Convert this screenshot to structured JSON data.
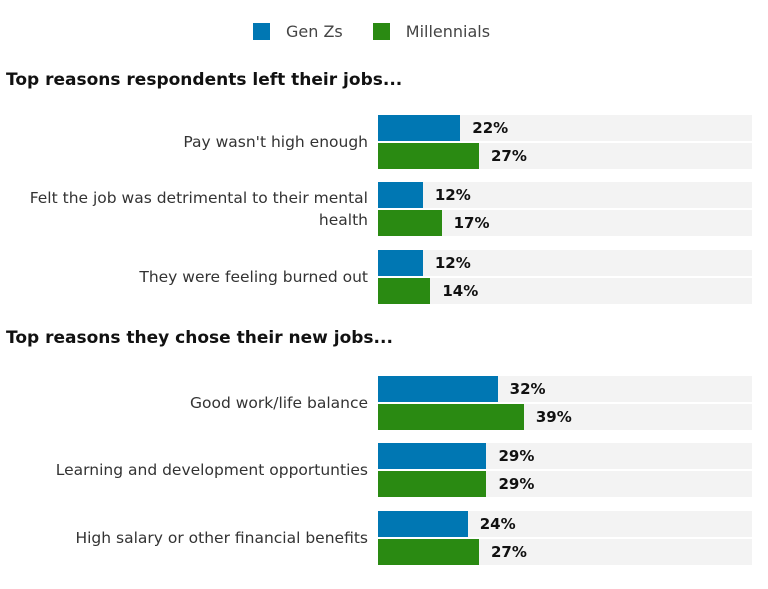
{
  "chart_data": {
    "type": "bar",
    "orientation": "horizontal",
    "xlim": [
      0,
      100
    ],
    "legend": {
      "position": "top",
      "entries": [
        "Gen Zs",
        "Millennials"
      ]
    },
    "colors": {
      "Gen Zs": "#0077b3",
      "Millennials": "#2a8a12"
    },
    "sections": [
      {
        "heading": "Top reasons respondents left their jobs...",
        "categories": [
          "Pay wasn't high enough",
          "Felt the job was detrimental to their mental health",
          "They were feeling burned out"
        ],
        "series": [
          {
            "name": "Gen Zs",
            "values": [
              22,
              12,
              12
            ]
          },
          {
            "name": "Millennials",
            "values": [
              27,
              17,
              14
            ]
          }
        ]
      },
      {
        "heading": "Top reasons they chose their new jobs...",
        "categories": [
          "Good work/life balance",
          "Learning and development opportunties",
          "High salary or other financial benefits"
        ],
        "series": [
          {
            "name": "Gen Zs",
            "values": [
              32,
              29,
              24
            ]
          },
          {
            "name": "Millennials",
            "values": [
              39,
              29,
              27
            ]
          }
        ]
      }
    ],
    "value_suffix": "%"
  }
}
